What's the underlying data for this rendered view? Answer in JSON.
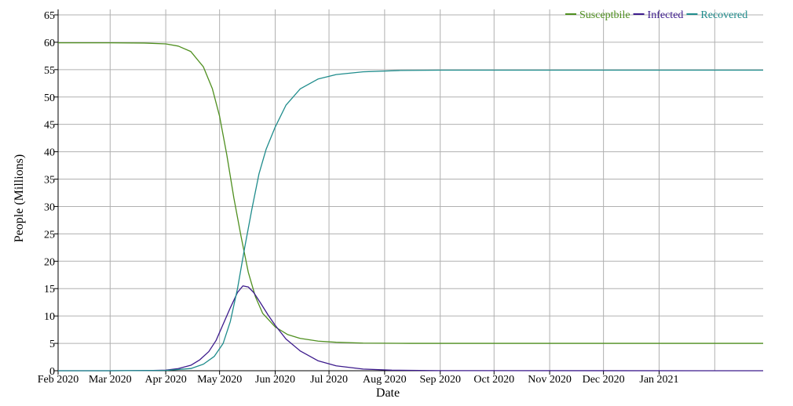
{
  "chart_data": {
    "type": "line",
    "title": "",
    "xlabel": "Date",
    "ylabel": "People (Millions)",
    "x_ticks": [
      "Feb 2020",
      "Mar 2020",
      "Apr 2020",
      "May 2020",
      "Jun 2020",
      "Jul 2020",
      "Aug 2020",
      "Sep 2020",
      "Oct 2020",
      "Nov 2020",
      "Dec 2020",
      "Jan 2021"
    ],
    "x_range": [
      "2020-02-01",
      "2021-02-28"
    ],
    "ylim": [
      0,
      66
    ],
    "y_ticks": [
      0,
      5,
      10,
      15,
      20,
      25,
      30,
      35,
      40,
      45,
      50,
      55,
      60,
      65
    ],
    "grid": true,
    "legend_position": "top-right",
    "series": [
      {
        "name": "Susceptbile",
        "color": "#4f8f1f",
        "points": [
          [
            "2020-02-01",
            59.9
          ],
          [
            "2020-03-01",
            59.9
          ],
          [
            "2020-03-20",
            59.85
          ],
          [
            "2020-04-01",
            59.7
          ],
          [
            "2020-04-08",
            59.3
          ],
          [
            "2020-04-15",
            58.3
          ],
          [
            "2020-04-22",
            55.5
          ],
          [
            "2020-04-27",
            51.5
          ],
          [
            "2020-05-01",
            46.5
          ],
          [
            "2020-05-05",
            39.5
          ],
          [
            "2020-05-09",
            31.5
          ],
          [
            "2020-05-13",
            24.5
          ],
          [
            "2020-05-17",
            18.0
          ],
          [
            "2020-05-21",
            13.5
          ],
          [
            "2020-05-25",
            10.5
          ],
          [
            "2020-06-01",
            8.0
          ],
          [
            "2020-06-08",
            6.6
          ],
          [
            "2020-06-15",
            5.9
          ],
          [
            "2020-06-25",
            5.4
          ],
          [
            "2020-07-05",
            5.2
          ],
          [
            "2020-07-20",
            5.05
          ],
          [
            "2020-08-15",
            5.0
          ],
          [
            "2021-02-28",
            5.0
          ]
        ]
      },
      {
        "name": "Infected",
        "color": "#3c1a8c",
        "points": [
          [
            "2020-02-01",
            0
          ],
          [
            "2020-03-01",
            0
          ],
          [
            "2020-03-25",
            0.05
          ],
          [
            "2020-04-01",
            0.1
          ],
          [
            "2020-04-08",
            0.4
          ],
          [
            "2020-04-15",
            1.0
          ],
          [
            "2020-04-20",
            2.0
          ],
          [
            "2020-04-25",
            3.5
          ],
          [
            "2020-04-29",
            5.5
          ],
          [
            "2020-05-03",
            8.5
          ],
          [
            "2020-05-07",
            11.5
          ],
          [
            "2020-05-11",
            14.3
          ],
          [
            "2020-05-14",
            15.5
          ],
          [
            "2020-05-17",
            15.3
          ],
          [
            "2020-05-20",
            14.3
          ],
          [
            "2020-05-24",
            12.3
          ],
          [
            "2020-05-28",
            10.2
          ],
          [
            "2020-06-01",
            8.3
          ],
          [
            "2020-06-07",
            5.8
          ],
          [
            "2020-06-15",
            3.6
          ],
          [
            "2020-06-25",
            1.8
          ],
          [
            "2020-07-05",
            0.9
          ],
          [
            "2020-07-20",
            0.3
          ],
          [
            "2020-08-05",
            0.1
          ],
          [
            "2020-09-01",
            0.02
          ],
          [
            "2021-02-28",
            0
          ]
        ]
      },
      {
        "name": "Recovered",
        "color": "#1f8c8c",
        "points": [
          [
            "2020-02-01",
            0
          ],
          [
            "2020-03-01",
            0
          ],
          [
            "2020-04-01",
            0.05
          ],
          [
            "2020-04-15",
            0.4
          ],
          [
            "2020-04-22",
            1.2
          ],
          [
            "2020-04-28",
            2.6
          ],
          [
            "2020-05-03",
            5.0
          ],
          [
            "2020-05-07",
            9.0
          ],
          [
            "2020-05-11",
            15.0
          ],
          [
            "2020-05-15",
            22.5
          ],
          [
            "2020-05-19",
            29.5
          ],
          [
            "2020-05-23",
            36.0
          ],
          [
            "2020-05-27",
            40.5
          ],
          [
            "2020-06-01",
            44.5
          ],
          [
            "2020-06-07",
            48.5
          ],
          [
            "2020-06-15",
            51.5
          ],
          [
            "2020-06-25",
            53.3
          ],
          [
            "2020-07-05",
            54.1
          ],
          [
            "2020-07-20",
            54.6
          ],
          [
            "2020-08-10",
            54.85
          ],
          [
            "2020-09-01",
            54.9
          ],
          [
            "2021-02-28",
            54.9
          ]
        ]
      }
    ]
  }
}
